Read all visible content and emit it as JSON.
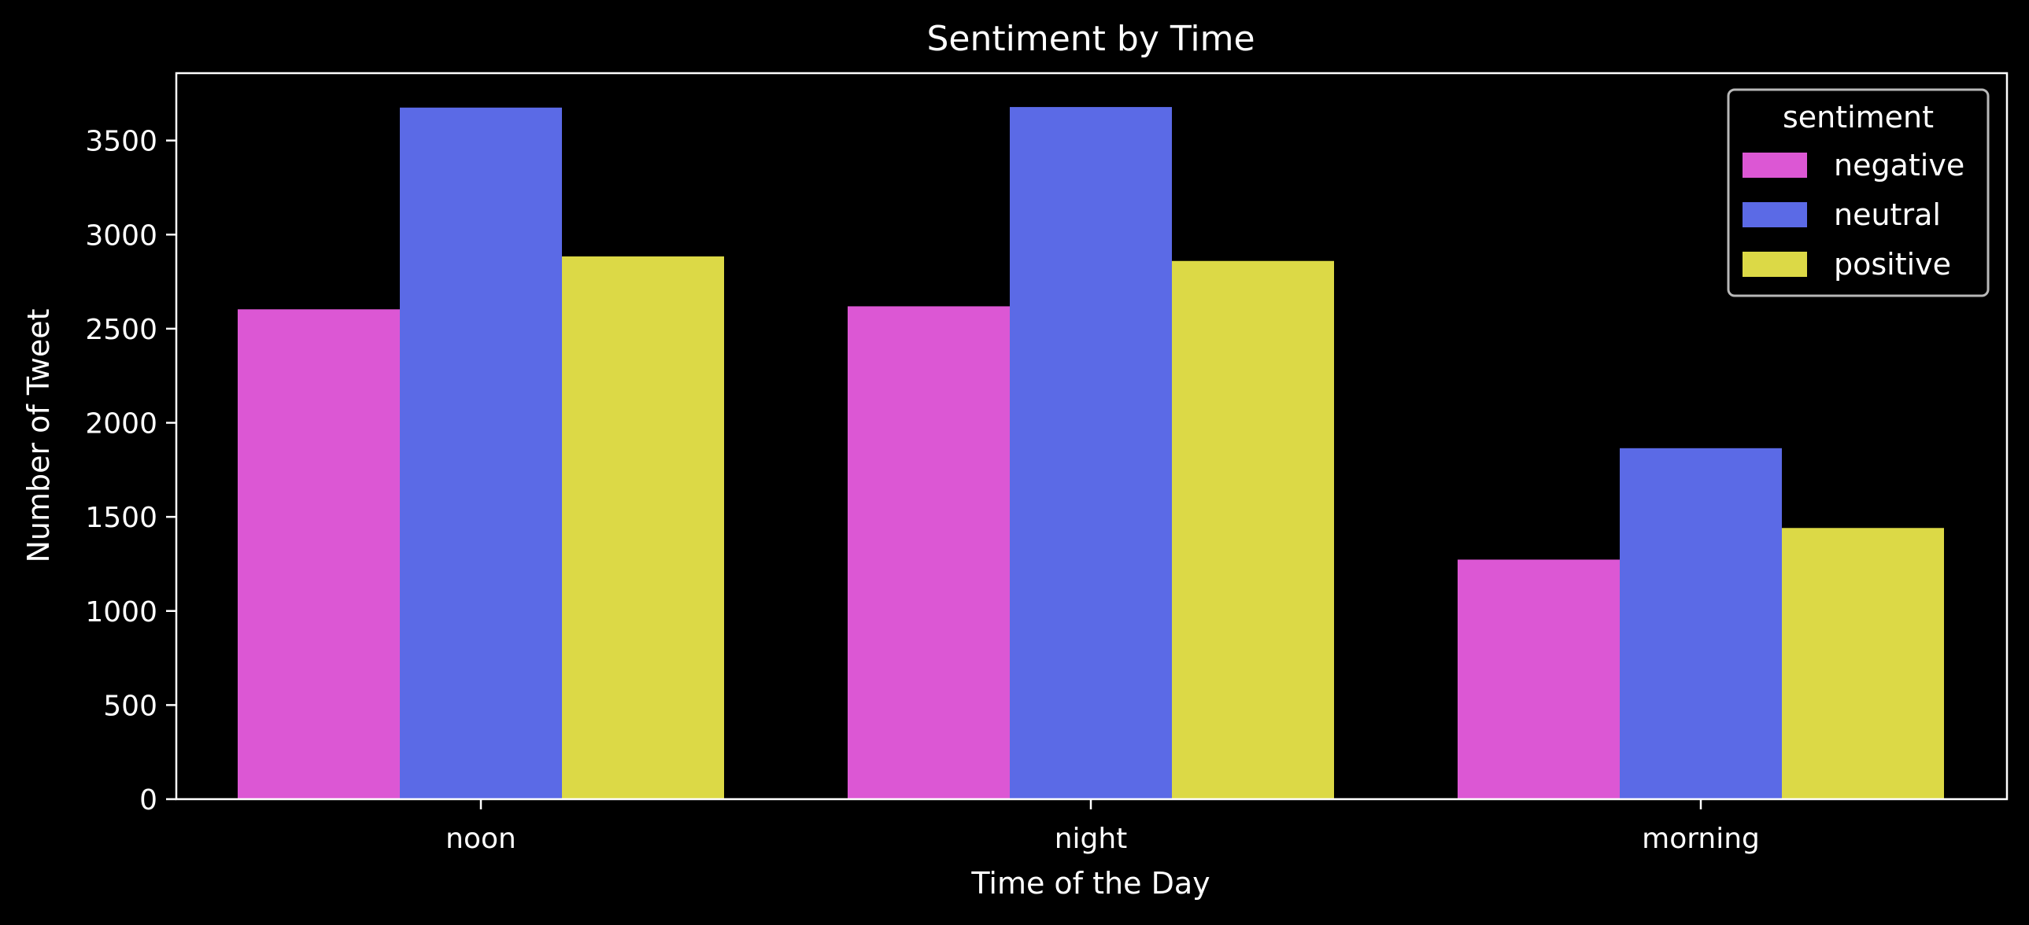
{
  "chart_data": {
    "type": "bar",
    "title": "Sentiment by Time",
    "xlabel": "Time of the Day",
    "ylabel": "Number of Tweet",
    "categories": [
      "noon",
      "night",
      "morning"
    ],
    "series": [
      {
        "name": "negative",
        "color": "#dc57d4",
        "values": [
          2603,
          2619,
          1273
        ]
      },
      {
        "name": "neutral",
        "color": "#5b6ae6",
        "values": [
          3675,
          3678,
          1865
        ]
      },
      {
        "name": "positive",
        "color": "#dcd946",
        "values": [
          2884,
          2860,
          1441
        ]
      }
    ],
    "ylim": [
      0,
      3858
    ],
    "yticks": [
      0,
      500,
      1000,
      1500,
      2000,
      2500,
      3000,
      3500
    ],
    "legend": {
      "title": "sentiment",
      "position": "top-right"
    },
    "grid": false,
    "background": "#000000",
    "foreground": "#ffffff"
  }
}
